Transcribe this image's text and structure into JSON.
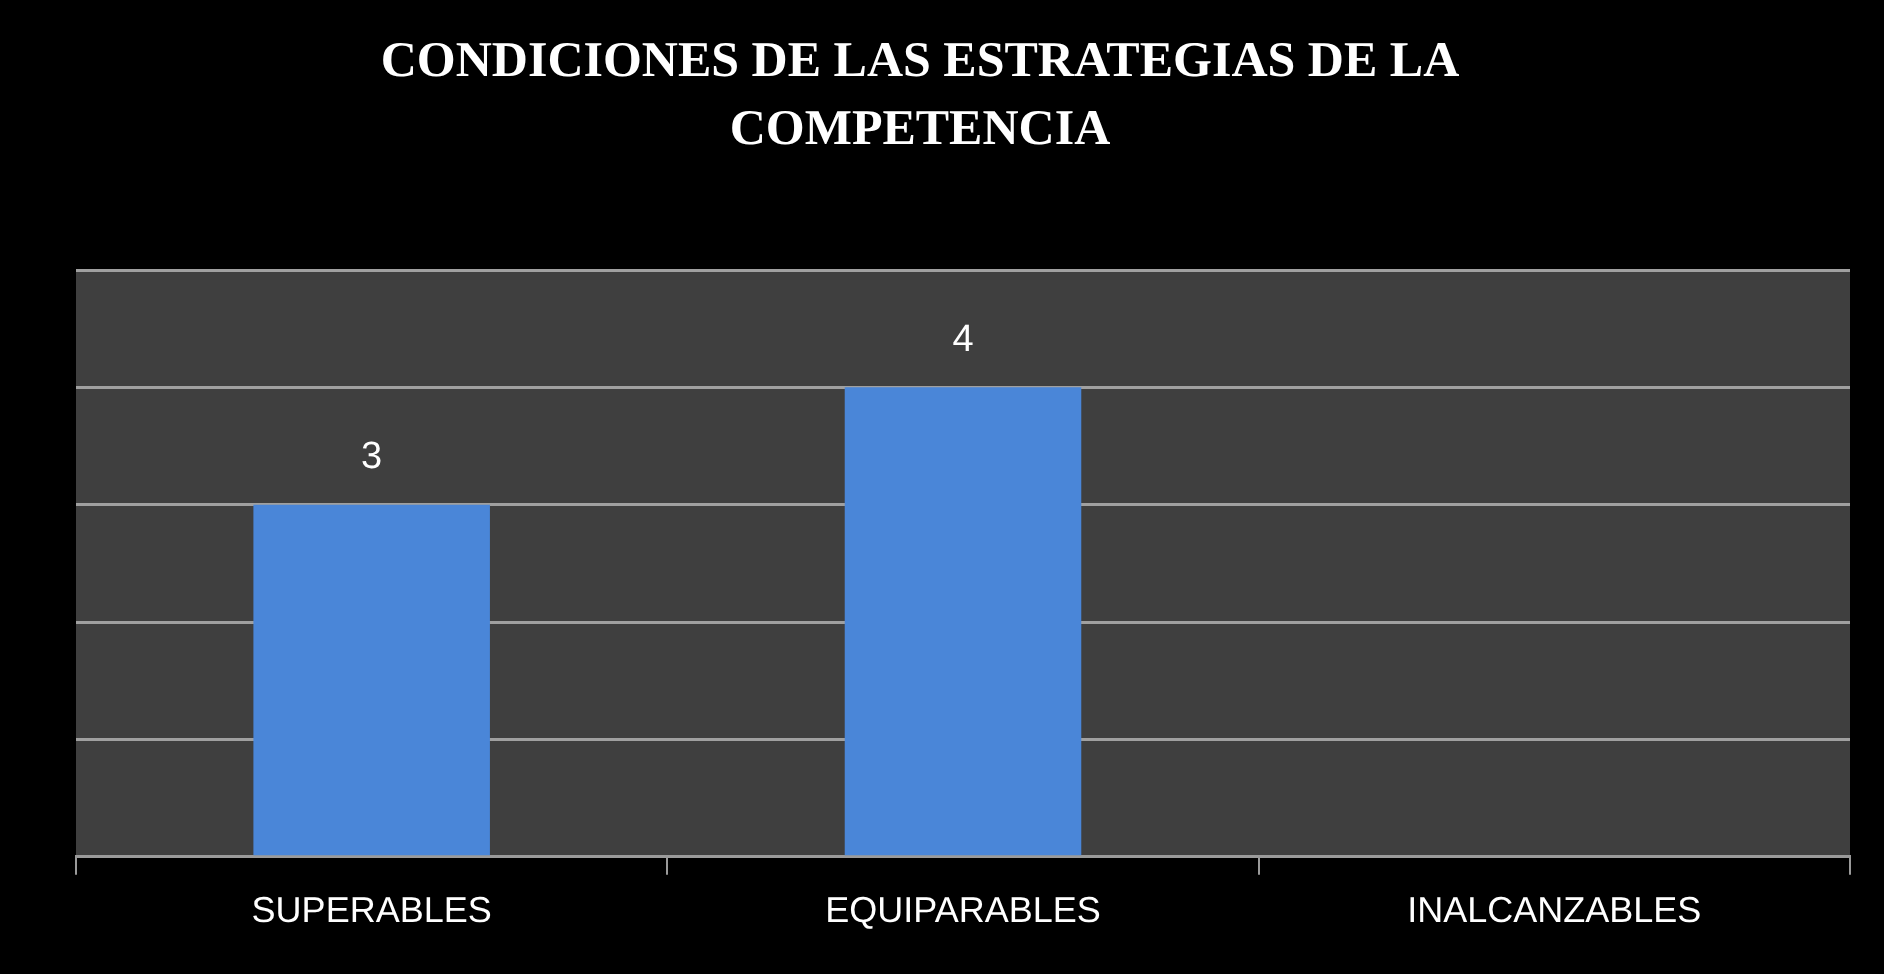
{
  "chart_data": {
    "type": "bar",
    "title": "CONDICIONES DE LAS ESTRATEGIAS DE LA COMPETENCIA",
    "categories": [
      "SUPERABLES",
      "EQUIPARABLES",
      "INALCANZABLES"
    ],
    "values": [
      3,
      4,
      0
    ],
    "value_labels": [
      "3",
      "4",
      null
    ],
    "color": "#4a86d8",
    "ylim": [
      0,
      5
    ],
    "yticks": [
      {
        "value": 0,
        "label": null
      },
      {
        "value": 1,
        "label": null
      },
      {
        "value": 2,
        "label": null
      },
      {
        "value": 3,
        "label": null
      },
      {
        "value": 4,
        "label": null
      },
      {
        "value": 5,
        "label": null
      }
    ],
    "grid": "y",
    "tick_labels": "x"
  }
}
